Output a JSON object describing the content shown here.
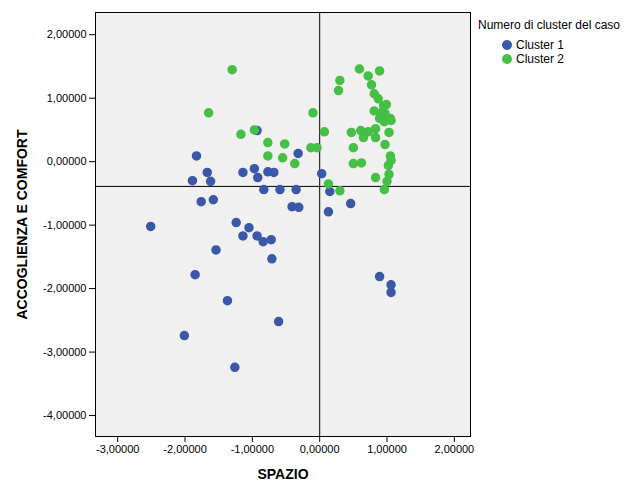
{
  "chart_data": {
    "type": "scatter",
    "x_label": "SPAZIO",
    "y_label": "ACCOGLIENZA E COMFORT",
    "legend_title": "Numero di cluster del caso",
    "legend": "top-right",
    "grid": false,
    "xlim": [
      -3.33,
      2.24
    ],
    "ylim": [
      -4.33,
      2.35
    ],
    "xticks": [
      {
        "value": -3,
        "label": "-3,00000"
      },
      {
        "value": -2,
        "label": "-2,00000"
      },
      {
        "value": -1,
        "label": "-1,00000"
      },
      {
        "value": 0,
        "label": "0,00000"
      },
      {
        "value": 1,
        "label": "1,00000"
      },
      {
        "value": 2,
        "label": "2,00000"
      }
    ],
    "yticks": [
      {
        "value": -4,
        "label": "-4,00000"
      },
      {
        "value": -3,
        "label": "-3,00000"
      },
      {
        "value": -2,
        "label": "-2,00000"
      },
      {
        "value": -1,
        "label": "-1,00000"
      },
      {
        "value": 0,
        "label": "0,00000"
      },
      {
        "value": 1,
        "label": "1,00000"
      },
      {
        "value": 2,
        "label": "2,00000"
      }
    ],
    "reference_lines": {
      "x": 0,
      "y": -0.39
    },
    "series": [
      {
        "name": "Cluster 1",
        "color": "#3b58a8",
        "marker": "circle",
        "x": [
          -2.51,
          -1.83,
          -1.89,
          -1.67,
          -1.62,
          -1.76,
          -1.58,
          -1.54,
          -1.85,
          -2.01,
          -1.37,
          -1.26,
          -1.24,
          -1.05,
          -1.14,
          -0.93,
          -0.84,
          -0.72,
          -0.71,
          -0.61,
          -1.14,
          -0.93,
          -0.97,
          -0.92,
          -0.83,
          -0.77,
          -0.68,
          -0.59,
          -0.35,
          -0.32,
          -0.41,
          -0.31,
          0.03,
          0.15,
          0.13,
          0.46,
          0.89,
          1.06,
          1.06
        ],
        "y": [
          -1.02,
          0.09,
          -0.3,
          -0.17,
          -0.31,
          -0.63,
          -0.6,
          -1.39,
          -1.78,
          -2.74,
          -2.19,
          -3.24,
          -0.96,
          -1.04,
          -1.17,
          -1.17,
          -1.26,
          -1.23,
          -1.53,
          -2.52,
          -0.17,
          0.49,
          -0.11,
          -0.25,
          -0.44,
          -0.16,
          -0.17,
          -0.44,
          -0.44,
          0.13,
          -0.71,
          -0.72,
          -0.19,
          -0.47,
          -0.79,
          -0.66,
          -1.81,
          -1.94,
          -2.06
        ]
      },
      {
        "name": "Cluster 2",
        "color": "#45bf45",
        "marker": "circle",
        "x": [
          -1.3,
          -1.65,
          -1.17,
          -0.97,
          -0.77,
          -0.52,
          -0.77,
          -0.55,
          -0.37,
          -0.1,
          -0.13,
          -0.04,
          0.07,
          0.28,
          0.3,
          0.13,
          0.3,
          0.59,
          0.72,
          0.81,
          0.77,
          0.89,
          0.47,
          0.5,
          0.61,
          0.65,
          0.72,
          0.81,
          0.83,
          0.83,
          0.92,
          0.95,
          0.97,
          0.99,
          0.89,
          0.96,
          1.05,
          1.06,
          1.03,
          0.97,
          1.05,
          1.06,
          1.02,
          1.03,
          0.83,
          0.96,
          1.0,
          0.62,
          0.5,
          0.87
        ],
        "y": [
          1.45,
          0.77,
          0.43,
          0.5,
          0.3,
          0.28,
          0.09,
          0.06,
          -0.03,
          0.77,
          0.22,
          0.22,
          0.47,
          1.12,
          1.28,
          -0.35,
          -0.46,
          1.46,
          1.35,
          1.07,
          1.21,
          1.43,
          0.46,
          0.22,
          0.49,
          0.38,
          0.47,
          0.8,
          0.52,
          0.38,
          0.77,
          0.88,
          0.76,
          0.9,
          0.68,
          0.63,
          0.68,
          0.65,
          0.46,
          0.27,
          0.09,
          0.02,
          -0.06,
          -0.2,
          -0.25,
          -0.44,
          -0.31,
          -0.02,
          -0.03,
          0.99
        ]
      }
    ]
  }
}
